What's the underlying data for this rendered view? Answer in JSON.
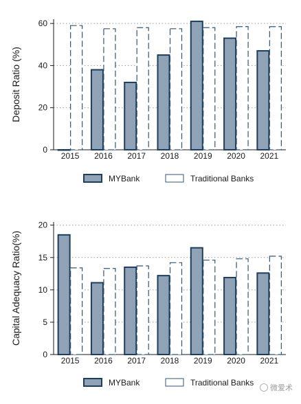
{
  "chart_data": [
    {
      "type": "bar",
      "categories": [
        "2015",
        "2016",
        "2017",
        "2018",
        "2019",
        "2020",
        "2021"
      ],
      "series": [
        {
          "name": "MYBank",
          "values": [
            0,
            38,
            32,
            45,
            61,
            53,
            47
          ]
        },
        {
          "name": "Traditional Banks",
          "values": [
            59,
            57.5,
            58,
            57.5,
            58,
            58.5,
            58.5
          ]
        }
      ],
      "title": "",
      "xlabel": "",
      "ylabel": "Deposit Ratio (%)",
      "ylim": [
        0,
        62
      ],
      "yticks": [
        0,
        20,
        40,
        60
      ],
      "grid": true,
      "legend": "bottom"
    },
    {
      "type": "bar",
      "categories": [
        "2015",
        "2016",
        "2017",
        "2018",
        "2019",
        "2020",
        "2021"
      ],
      "series": [
        {
          "name": "MYBank",
          "values": [
            18.5,
            11.1,
            13.5,
            12.2,
            16.5,
            11.9,
            12.6
          ]
        },
        {
          "name": "Traditional Banks",
          "values": [
            13.4,
            13.3,
            13.7,
            14.2,
            14.6,
            14.8,
            15.2
          ]
        }
      ],
      "title": "",
      "xlabel": "",
      "ylabel": "Capital Adequacy Ratio(%)",
      "ylim": [
        0,
        20.5
      ],
      "yticks": [
        0,
        5,
        10,
        15,
        20
      ],
      "grid": true,
      "legend": "bottom"
    }
  ],
  "colors": {
    "mybank_fill": "#8fa2b6",
    "mybank_stroke": "#1e3d5c",
    "traditional_fill": "#ffffff",
    "traditional_stroke": "#2f5678",
    "grid": "#9a9a9a",
    "axis": "#1a1a1a"
  },
  "watermark": {
    "text": "微爱术"
  }
}
